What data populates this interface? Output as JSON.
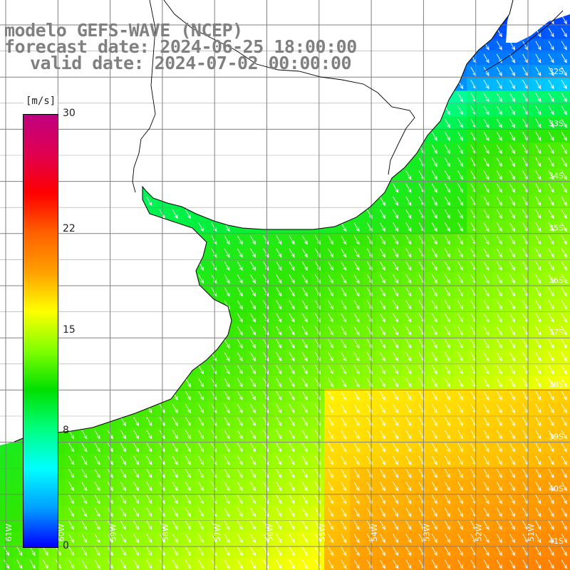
{
  "title": {
    "line1": "modelo GEFS-WAVE (NCEP)",
    "line2": "forecast date: 2024-06-25 18:00:00",
    "line3": "valid date: 2024-07-02 00:00:00"
  },
  "colorbar": {
    "unit": "[m/s]",
    "ticks": [
      "30",
      "22",
      "15",
      "8",
      "0"
    ],
    "tick_values": [
      30,
      22,
      15,
      8,
      0
    ],
    "min": 0,
    "max": 30,
    "colors": [
      "#0000ff",
      "#00a0ff",
      "#00ffff",
      "#00ff80",
      "#00e000",
      "#80ff00",
      "#ffff00",
      "#ffa000",
      "#ff6000",
      "#ff0000",
      "#e00050",
      "#c00080"
    ]
  },
  "map": {
    "lat_labels": [
      "32S",
      "33S",
      "34S",
      "35S",
      "36S",
      "37S",
      "38S",
      "39S",
      "40S",
      "41S"
    ],
    "lon_labels": [
      "61W",
      "60W",
      "59W",
      "58W",
      "57W",
      "56W",
      "55W",
      "54W",
      "53W",
      "52W",
      "51W"
    ],
    "land_color": "#ffffff",
    "grid_color": "#808080",
    "arrow_color": "#ffffff",
    "wind_direction": "north-west to south-east"
  }
}
